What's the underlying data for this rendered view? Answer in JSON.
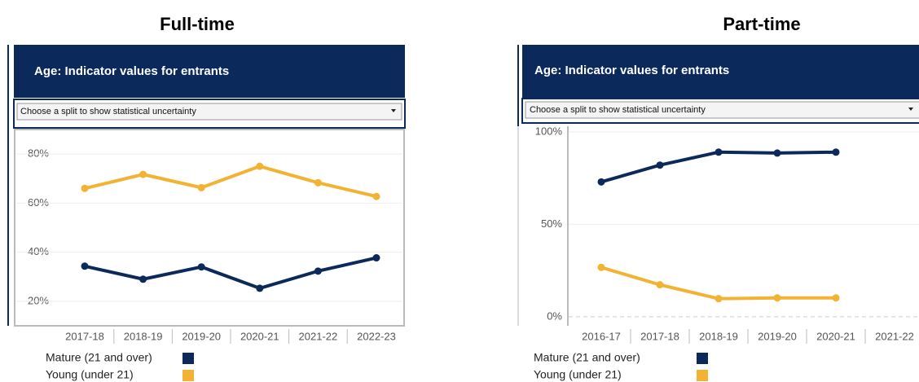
{
  "chart_data": [
    {
      "type": "line",
      "title": "Full-time",
      "panel_title": "Age: Indicator values for entrants",
      "dropdown": "Choose a split to show statistical uncertainty",
      "categories": [
        "2017-18",
        "2018-19",
        "2019-20",
        "2020-21",
        "2021-22",
        "2022-23"
      ],
      "series": [
        {
          "name": "Mature (21 and over)",
          "color": "#0b2a5b",
          "values": [
            34.3,
            29,
            34,
            25.3,
            32.3,
            37.7
          ]
        },
        {
          "name": "Young (under 21)",
          "color": "#f2b233",
          "values": [
            66,
            71.7,
            66.3,
            75,
            68.3,
            62.7
          ]
        }
      ],
      "ylim": [
        10,
        89
      ],
      "yticks": [
        {
          "value": 20,
          "label": "20%"
        },
        {
          "value": 40,
          "label": "40%"
        },
        {
          "value": 60,
          "label": "60%"
        },
        {
          "value": 80,
          "label": "80%"
        }
      ],
      "grid": true
    },
    {
      "type": "line",
      "title": "Part-time",
      "panel_title": "Age: Indicator values for entrants",
      "dropdown": "Choose a split to show statistical uncertainty",
      "categories": [
        "2016-17",
        "2017-18",
        "2018-19",
        "2019-20",
        "2020-21",
        "2021-22"
      ],
      "series": [
        {
          "name": "Mature (21 and over)",
          "color": "#0b2a5b",
          "values": [
            72.9,
            82,
            89,
            88.5,
            89,
            null
          ]
        },
        {
          "name": "Young (under 21)",
          "color": "#f2b233",
          "values": [
            26.7,
            17.3,
            9.8,
            10.2,
            10.2,
            null
          ]
        }
      ],
      "ylim": [
        -4,
        103
      ],
      "yticks": [
        {
          "value": 0,
          "label": "0%"
        },
        {
          "value": 50,
          "label": "50%"
        },
        {
          "value": 100,
          "label": "100%"
        }
      ],
      "grid": true
    }
  ]
}
